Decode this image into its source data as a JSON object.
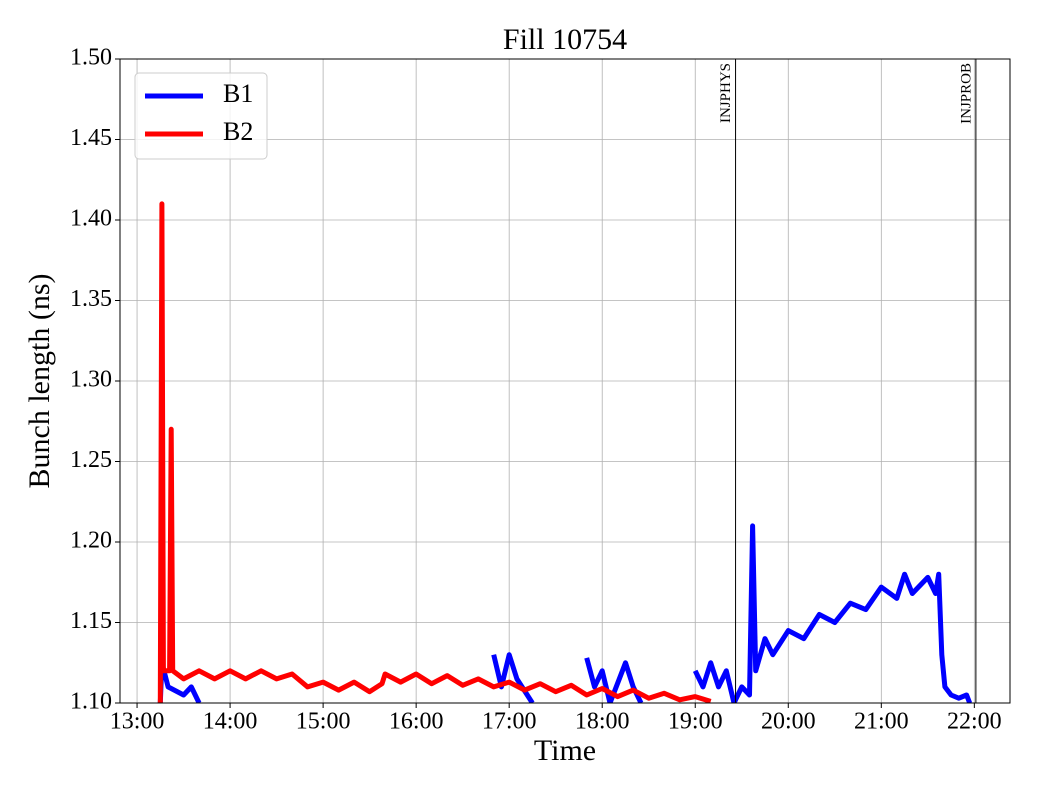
{
  "chart_data": {
    "type": "line",
    "title": "Fill 10754",
    "xlabel": "Time",
    "ylabel": "Bunch length (ns)",
    "xlim": [
      "12:49",
      "22:23"
    ],
    "xticks": [
      "13:00",
      "14:00",
      "15:00",
      "16:00",
      "17:00",
      "18:00",
      "19:00",
      "20:00",
      "21:00",
      "22:00"
    ],
    "ylim": [
      1.1,
      1.5
    ],
    "yticks": [
      {
        "value": 1.1,
        "label": "1.10"
      },
      {
        "value": 1.15,
        "label": "1.15"
      },
      {
        "value": 1.2,
        "label": "1.20"
      },
      {
        "value": 1.25,
        "label": "1.25"
      },
      {
        "value": 1.3,
        "label": "1.30"
      },
      {
        "value": 1.35,
        "label": "1.35"
      },
      {
        "value": 1.4,
        "label": "1.40"
      },
      {
        "value": 1.45,
        "label": "1.45"
      },
      {
        "value": 1.5,
        "label": "1.50"
      }
    ],
    "grid": true,
    "legend": "upper left",
    "vlines": [
      {
        "x": "19:26",
        "label": "INJPHYS"
      },
      {
        "x": "22:01",
        "label": "INJPROB"
      }
    ],
    "series": [
      {
        "name": "B1",
        "color": "#0000ff",
        "x": [
          "13:15",
          "13:16",
          "13:20",
          "13:30",
          "13:35",
          "13:40",
          "13:45",
          "16:50",
          "16:55",
          "17:00",
          "17:05",
          "17:15",
          "17:30",
          "17:50",
          "17:55",
          "18:00",
          "18:05",
          "18:15",
          "18:20",
          "18:25",
          "18:40",
          "19:00",
          "19:05",
          "19:10",
          "19:15",
          "19:20",
          "19:25",
          "19:30",
          "19:35",
          "19:37",
          "19:39",
          "19:45",
          "19:50",
          "20:00",
          "20:10",
          "20:20",
          "20:30",
          "20:40",
          "20:50",
          "21:00",
          "21:10",
          "21:15",
          "21:20",
          "21:30",
          "21:35",
          "21:37",
          "21:39",
          "21:41",
          "21:45",
          "21:50",
          "21:55",
          "21:57"
        ],
        "values": [
          1.1,
          1.125,
          1.11,
          1.105,
          1.11,
          1.1,
          null,
          1.13,
          1.11,
          1.13,
          1.115,
          1.1,
          null,
          1.128,
          1.11,
          1.12,
          1.1,
          1.125,
          1.11,
          1.1,
          null,
          1.12,
          1.11,
          1.125,
          1.11,
          1.12,
          1.1,
          1.11,
          1.105,
          1.21,
          1.12,
          1.14,
          1.13,
          1.145,
          1.14,
          1.155,
          1.15,
          1.162,
          1.158,
          1.172,
          1.165,
          1.18,
          1.168,
          1.178,
          1.168,
          1.18,
          1.13,
          1.11,
          1.105,
          1.103,
          1.105,
          1.1
        ]
      },
      {
        "name": "B2",
        "color": "#ff0000",
        "x": [
          "13:15",
          "13:16",
          "13:17",
          "13:21",
          "13:22",
          "13:23",
          "13:30",
          "13:40",
          "13:50",
          "14:00",
          "14:10",
          "14:20",
          "14:30",
          "14:40",
          "14:50",
          "15:00",
          "15:10",
          "15:20",
          "15:30",
          "15:38",
          "15:40",
          "15:50",
          "16:00",
          "16:10",
          "16:20",
          "16:30",
          "16:40",
          "16:50",
          "17:00",
          "17:10",
          "17:20",
          "17:30",
          "17:40",
          "17:50",
          "18:00",
          "18:10",
          "18:20",
          "18:30",
          "18:40",
          "18:50",
          "19:00",
          "19:10"
        ],
        "values": [
          1.1,
          1.41,
          1.12,
          1.12,
          1.27,
          1.12,
          1.115,
          1.12,
          1.115,
          1.12,
          1.115,
          1.12,
          1.115,
          1.118,
          1.11,
          1.113,
          1.108,
          1.113,
          1.107,
          1.112,
          1.118,
          1.113,
          1.118,
          1.112,
          1.117,
          1.111,
          1.115,
          1.11,
          1.113,
          1.108,
          1.112,
          1.107,
          1.111,
          1.105,
          1.109,
          1.104,
          1.108,
          1.103,
          1.106,
          1.102,
          1.104,
          1.101
        ]
      }
    ]
  }
}
